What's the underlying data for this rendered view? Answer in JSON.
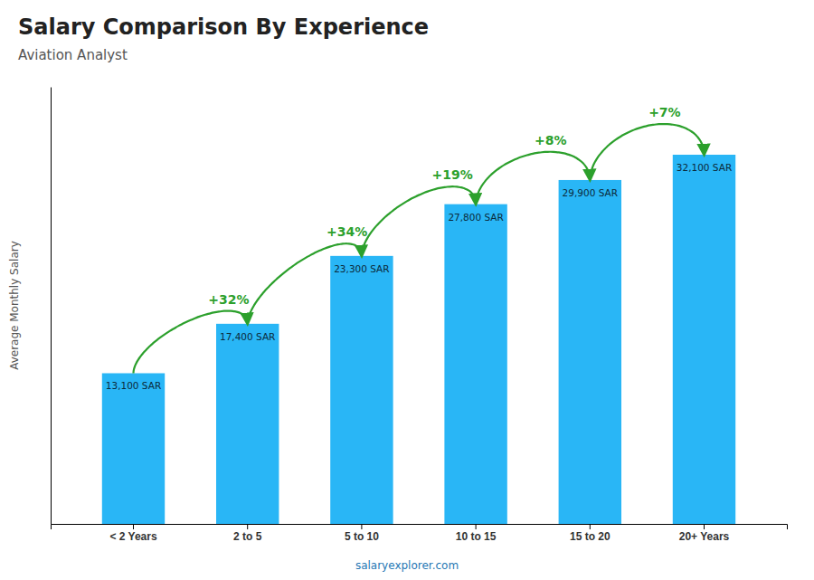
{
  "chart_data": {
    "type": "bar",
    "title": "Salary Comparison By Experience",
    "subtitle": "Aviation Analyst",
    "y_label": "Average Monthly Salary",
    "categories": [
      "< 2 Years",
      "2 to 5",
      "5 to 10",
      "10 to 15",
      "15 to 20",
      "20+ Years"
    ],
    "values": [
      13100,
      17400,
      23300,
      27800,
      29900,
      32100
    ],
    "value_labels": [
      "13,100 SAR",
      "17,400 SAR",
      "23,300 SAR",
      "27,800 SAR",
      "29,900 SAR",
      "32,100 SAR"
    ],
    "data_labels": true,
    "annotations": [
      "+32%",
      "+34%",
      "+19%",
      "+8%",
      "+7%"
    ],
    "footer": "salaryexplorer.com",
    "color": "#29b6f6",
    "ylim": [
      0,
      38000
    ],
    "tick_labels": "x",
    "grid": false
  }
}
